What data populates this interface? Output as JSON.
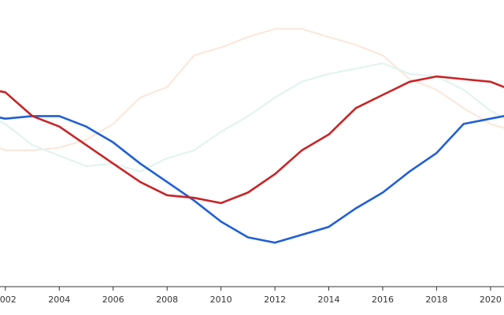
{
  "chart_data": {
    "type": "line",
    "title": "",
    "xlabel": "",
    "ylabel": "",
    "xlim": [
      2001.8,
      2020.5
    ],
    "ylim": [
      0,
      100
    ],
    "x_ticks": [
      "2002",
      "2004",
      "2006",
      "2008",
      "2010",
      "2012",
      "2014",
      "2016",
      "2018",
      "2020"
    ],
    "x": [
      2001,
      2002,
      2003,
      2004,
      2005,
      2006,
      2007,
      2008,
      2009,
      2010,
      2011,
      2012,
      2013,
      2014,
      2015,
      2016,
      2017,
      2018,
      2019,
      2020,
      2021
    ],
    "grid": false,
    "legend": "none",
    "series": [
      {
        "color": "#fbe6da",
        "width": 2,
        "values": [
          50,
          46,
          46,
          47,
          50,
          56,
          66,
          70,
          82,
          85,
          89,
          92,
          92,
          89,
          86,
          82,
          73,
          69,
          62,
          56,
          53
        ]
      },
      {
        "color": "#dff3ee",
        "width": 2,
        "values": [
          61,
          56,
          48,
          44,
          40,
          41,
          38,
          43,
          46,
          53,
          59,
          66,
          72,
          75,
          77,
          79,
          75,
          74,
          69,
          61,
          56
        ]
      },
      {
        "color": "#1f5fd6",
        "width": 2.6,
        "values": [
          60,
          58,
          59,
          59,
          55,
          49,
          41,
          34,
          27,
          19,
          13,
          11,
          14,
          17,
          24,
          30,
          38,
          45,
          56,
          58,
          60
        ]
      },
      {
        "color": "#c82427",
        "width": 2.6,
        "values": [
          70,
          68,
          59,
          55,
          48,
          41,
          34,
          29,
          28,
          26,
          30,
          37,
          46,
          52,
          62,
          67,
          72,
          74,
          73,
          72,
          68
        ]
      }
    ]
  }
}
